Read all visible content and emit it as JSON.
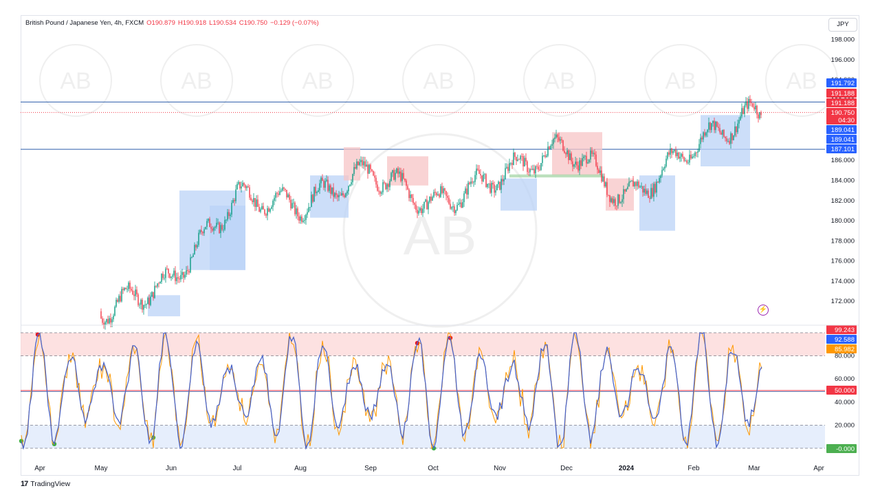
{
  "header": {
    "symbol": "British Pound / Japanese Yen, 4h, FXCM",
    "open": "O190.879",
    "high": "H190.918",
    "low": "L190.534",
    "close": "C190.750",
    "change": "−0.129 (−0.07%)",
    "currency": "JPY"
  },
  "footer": {
    "logo": "17",
    "brand": "TradingView"
  },
  "watermark_text": "AB",
  "colors": {
    "up": "#089981",
    "down": "#f23645",
    "blue_line": "#2a5caa",
    "blue_zone": "#bbd3f7",
    "red_zone": "#f7c4c6",
    "green_zone": "#a5d6a7",
    "osc_line": "#4a64c8",
    "osc_signal": "#ff9800",
    "badge_blue": "#2962ff",
    "badge_red": "#f23645",
    "badge_orange": "#ff9800",
    "badge_green": "#4caf50"
  },
  "chart_data": [
    {
      "type": "candlestick",
      "title": "British Pound / Japanese Yen, 4h, FXCM",
      "x_labels": [
        "Apr",
        "May",
        "Jun",
        "Jul",
        "Aug",
        "Sep",
        "Oct",
        "Nov",
        "Dec",
        "2024",
        "Feb",
        "Mar",
        "Apr"
      ],
      "y_ticks": [
        172,
        174,
        176,
        178,
        180,
        182,
        184,
        186,
        188,
        190,
        192,
        194,
        196,
        198
      ],
      "y_tick_labels": [
        "172.000",
        "174.000",
        "176.000",
        "178.000",
        "180.000",
        "182.000",
        "184.000",
        "186.000",
        "188.000",
        "190.000",
        "192.000",
        "194.000",
        "196.000",
        "198.000"
      ],
      "ylim": [
        170.3,
        199.2
      ],
      "grid": false,
      "monthly_path": [
        {
          "month": "May",
          "price": 171.0
        },
        {
          "month": "Jun",
          "price": 174.0
        },
        {
          "month": "Jul",
          "price": 182.5
        },
        {
          "month": "Aug",
          "price": 181.5
        },
        {
          "month": "Sep",
          "price": 185.0
        },
        {
          "month": "Oct",
          "price": 181.5
        },
        {
          "month": "Nov",
          "price": 184.5
        },
        {
          "month": "Dec",
          "price": 187.5
        },
        {
          "month": "2024",
          "price": 182.0
        },
        {
          "month": "Feb",
          "price": 187.5
        },
        {
          "month": "Mar",
          "price": 190.75
        }
      ],
      "horizontal_lines": [
        191.792,
        187.101
      ],
      "last_price_line": 190.75,
      "price_badges": [
        {
          "label": "191.792",
          "color": "#2962ff"
        },
        {
          "label": "191.188",
          "color": "#f23645"
        },
        {
          "label": "191.188",
          "color": "#f23645"
        },
        {
          "label": "190.750",
          "color": "#f23645"
        },
        {
          "label": "04:30",
          "color": "#f23645"
        },
        {
          "label": "189.041",
          "color": "#2962ff"
        },
        {
          "label": "189.041",
          "color": "#2962ff"
        },
        {
          "label": "187.101",
          "color": "#2962ff"
        }
      ]
    },
    {
      "type": "line",
      "ylim": [
        0,
        100
      ],
      "y_ticks": [
        20,
        40,
        60,
        80
      ],
      "y_tick_labels": [
        "20.000",
        "40.000",
        "60.000",
        "80.000"
      ],
      "levels": [
        0,
        20,
        50,
        80,
        100
      ],
      "series": [
        {
          "values": []
        },
        {
          "values": []
        }
      ],
      "badges": [
        {
          "label": "99.243",
          "color": "#f23645"
        },
        {
          "label": "92.588",
          "color": "#2962ff"
        },
        {
          "label": "85.982",
          "color": "#ff9800"
        },
        {
          "label": "50.000",
          "color": "#f23645"
        },
        {
          "label": "-0.000",
          "color": "#4caf50"
        }
      ]
    }
  ]
}
